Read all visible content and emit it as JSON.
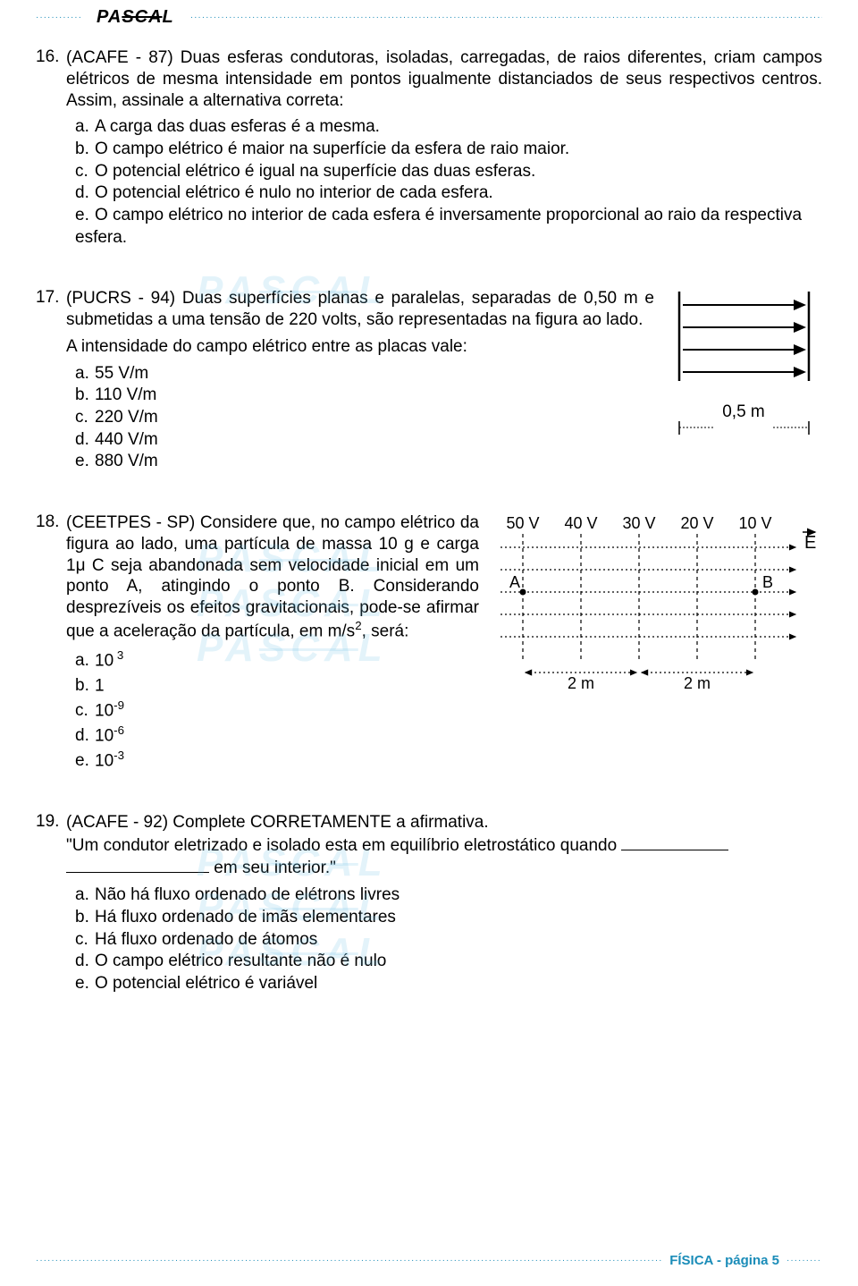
{
  "header": {
    "logo_pa": "PA",
    "logo_sca": "SCA",
    "logo_l": "L"
  },
  "q16": {
    "num": "16.",
    "stem": "(ACAFE - 87) Duas esferas condutoras, isoladas, carregadas, de raios diferentes, criam campos elétricos de mesma intensidade em pontos igualmente distanciados de seus respectivos centros. Assim, assinale a alternativa correta:",
    "a": "A carga das duas esferas é a mesma.",
    "b": "O campo elétrico é maior na superfície da esfera de raio maior.",
    "c": "O potencial elétrico é igual na superfície das duas esferas.",
    "d": "O potencial elétrico é nulo no interior de cada esfera.",
    "e": "O campo elétrico no interior de cada esfera é inversamente proporcional ao raio da respectiva esfera."
  },
  "q17": {
    "num": "17.",
    "stem": "(PUCRS - 94) Duas superfícies planas e paralelas, separadas de 0,50 m e submetidas a uma tensão de 220 volts, são representadas na figura ao lado.",
    "sub": "A intensidade do campo elétrico entre as placas vale:",
    "a": "55 V/m",
    "b": "110 V/m",
    "c": "220 V/m",
    "d": "440 V/m",
    "e": "880 V/m",
    "fig": {
      "label": "0,5 m"
    }
  },
  "q18": {
    "num": "18.",
    "stem_html": "(CEETPES - SP) Considere que, no campo elé­trico da figura ao lado, uma partícula de massa 10 g e carga 1μ C seja abandonada sem veloci­dade inicial em um ponto A, atingindo o ponto B. Considerando desprezíveis os efeitos gravitacio­nais, pode-se afirmar que a aceleração da partí­cula, em m/s<span class='sup'>2</span>, será:",
    "a": "10",
    "a_exp": " 3",
    "b": "1",
    "b_exp": "",
    "c": "10",
    "c_exp": "-9",
    "d": "10",
    "d_exp": "-6",
    "e": "10",
    "e_exp": "-3",
    "fig": {
      "v1": "50 V",
      "v2": "40 V",
      "v3": "30 V",
      "v4": "20 V",
      "v5": "10 V",
      "E": "E",
      "A": "A",
      "B": "B",
      "d1": "2 m",
      "d2": "2 m"
    }
  },
  "q19": {
    "num": "19.",
    "stem_pre": "(ACAFE - 92) Complete CORRETAMENTE a afirmativa.",
    "quote_pre": "\"Um condutor eletrizado e isolado esta em equilíbrio eletrostático quando ",
    "quote_post": " em seu interior.\"",
    "a": "Não há fluxo ordenado de elétrons livres",
    "b": "Há fluxo ordenado de imãs elementares",
    "c": "Há fluxo ordenado de átomos",
    "d": "O campo elétrico resultante não é nulo",
    "e": "O potencial elétrico é variável"
  },
  "footer": {
    "text": "FÍSICA - página 5"
  },
  "wm": {
    "pa": "PA",
    "sca": "SCA",
    "l": "L"
  }
}
